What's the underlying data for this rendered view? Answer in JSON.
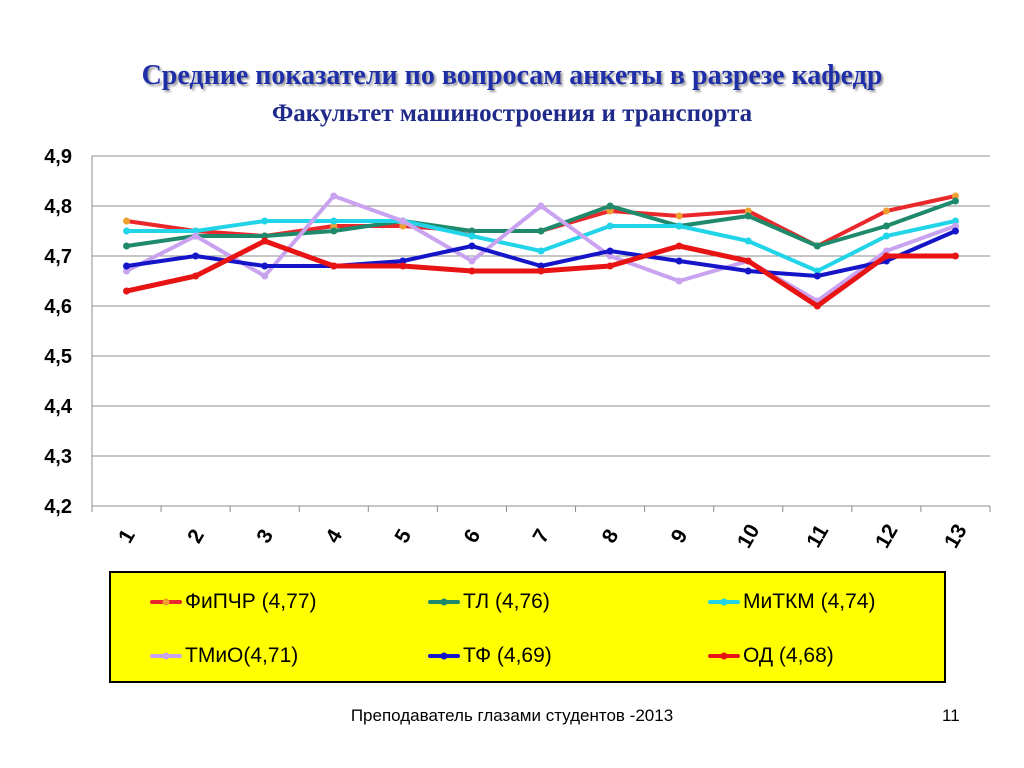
{
  "title": "Средние показатели по вопросам  анкеты  в разрезе кафедр",
  "subtitle": "Факультет машиностроения и транспорта",
  "footer": "Преподаватель глазами студентов -2013",
  "page_number": "11",
  "chart_data": {
    "type": "line",
    "x": [
      "1",
      "2",
      "3",
      "4",
      "5",
      "6",
      "7",
      "8",
      "9",
      "10",
      "11",
      "12",
      "13"
    ],
    "ylim": [
      4.2,
      4.9
    ],
    "y_ticks": [
      "4,2",
      "4,3",
      "4,4",
      "4,5",
      "4,6",
      "4,7",
      "4,8",
      "4,9"
    ],
    "grid": true,
    "legend_position": "bottom",
    "series": [
      {
        "name": "ФиПЧР (4,77)",
        "color": "#e8282b",
        "marker_color": "#f0a030",
        "values": [
          4.77,
          4.75,
          4.74,
          4.76,
          4.76,
          4.75,
          4.75,
          4.79,
          4.78,
          4.79,
          4.72,
          4.79,
          4.82
        ]
      },
      {
        "name": "ТЛ (4,76)",
        "color": "#1f8a6b",
        "marker_color": "#1f8a6b",
        "values": [
          4.72,
          4.74,
          4.74,
          4.75,
          4.77,
          4.75,
          4.75,
          4.8,
          4.76,
          4.78,
          4.72,
          4.76,
          4.81
        ]
      },
      {
        "name": "МиТКМ (4,74)",
        "color": "#22d4e8",
        "marker_color": "#22d4e8",
        "values": [
          4.75,
          4.75,
          4.77,
          4.77,
          4.77,
          4.74,
          4.71,
          4.76,
          4.76,
          4.73,
          4.67,
          4.74,
          4.77
        ]
      },
      {
        "name": "ТМиО(4,71)",
        "color": "#c9a3f0",
        "marker_color": "#c9a3f0",
        "values": [
          4.67,
          4.74,
          4.66,
          4.82,
          4.77,
          4.69,
          4.8,
          4.7,
          4.65,
          4.69,
          4.61,
          4.71,
          4.76
        ]
      },
      {
        "name": "ТФ (4,69)",
        "color": "#1414c8",
        "marker_color": "#1414c8",
        "values": [
          4.68,
          4.7,
          4.68,
          4.68,
          4.69,
          4.72,
          4.68,
          4.71,
          4.69,
          4.67,
          4.66,
          4.69,
          4.75
        ]
      },
      {
        "name": "ОД (4,68)",
        "color": "#e81414",
        "marker_color": "#e81414",
        "values": [
          4.63,
          4.66,
          4.73,
          4.68,
          4.68,
          4.67,
          4.67,
          4.68,
          4.72,
          4.69,
          4.6,
          4.7,
          4.7
        ]
      }
    ]
  }
}
